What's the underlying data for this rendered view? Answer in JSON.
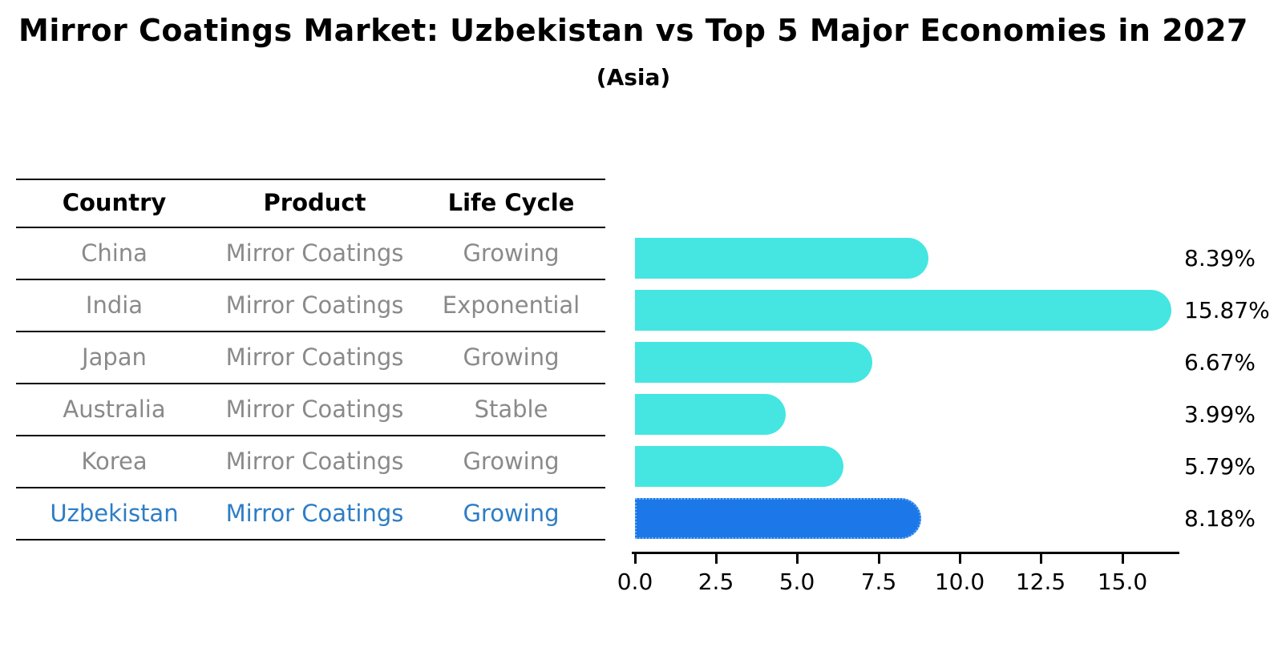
{
  "title": "Mirror Coatings Market: Uzbekistan vs Top 5 Major Economies in 2027",
  "subtitle": "(Asia)",
  "table": {
    "headers": [
      "Country",
      "Product",
      "Life Cycle"
    ],
    "rows": [
      {
        "country": "China",
        "product": "Mirror Coatings",
        "life_cycle": "Growing",
        "highlight": false
      },
      {
        "country": "India",
        "product": "Mirror Coatings",
        "life_cycle": "Exponential",
        "highlight": false
      },
      {
        "country": "Japan",
        "product": "Mirror Coatings",
        "life_cycle": "Growing",
        "highlight": false
      },
      {
        "country": "Australia",
        "product": "Mirror Coatings",
        "life_cycle": "Stable",
        "highlight": false
      },
      {
        "country": "Korea",
        "product": "Mirror Coatings",
        "life_cycle": "Growing",
        "highlight": false
      },
      {
        "country": "Uzbekistan",
        "product": "Mirror Coatings",
        "life_cycle": "Growing",
        "highlight": true
      }
    ]
  },
  "chart_data": {
    "type": "bar",
    "orientation": "horizontal",
    "title": "Mirror Coatings Market: Uzbekistan vs Top 5 Major Economies in 2027",
    "subtitle": "(Asia)",
    "categories": [
      "China",
      "India",
      "Japan",
      "Australia",
      "Korea",
      "Uzbekistan"
    ],
    "values": [
      8.39,
      15.87,
      6.67,
      3.99,
      5.79,
      8.18
    ],
    "labels": [
      "8.39%",
      "15.87%",
      "6.67%",
      "3.99%",
      "5.79%",
      "8.18%"
    ],
    "xlabel": "",
    "ylabel": "",
    "xlim": [
      0,
      16.8
    ],
    "xticks": [
      0.0,
      2.5,
      5.0,
      7.5,
      10.0,
      12.5,
      15.0
    ],
    "xtick_labels": [
      "0.0",
      "2.5",
      "5.0",
      "7.5",
      "10.0",
      "12.5",
      "15.0"
    ],
    "grid": false,
    "legend": false,
    "bar_color": "#45e6e1",
    "highlight_color": "#1c78e8",
    "highlight_index": 5,
    "highlight_border_style": "dotted"
  },
  "colors": {
    "background": "#ffffff",
    "text_primary": "#000000",
    "text_muted": "#8a8a8a",
    "highlight_text": "#2d7dc6",
    "bar": "#45e6e1",
    "highlight_bar": "#1c78e8"
  }
}
